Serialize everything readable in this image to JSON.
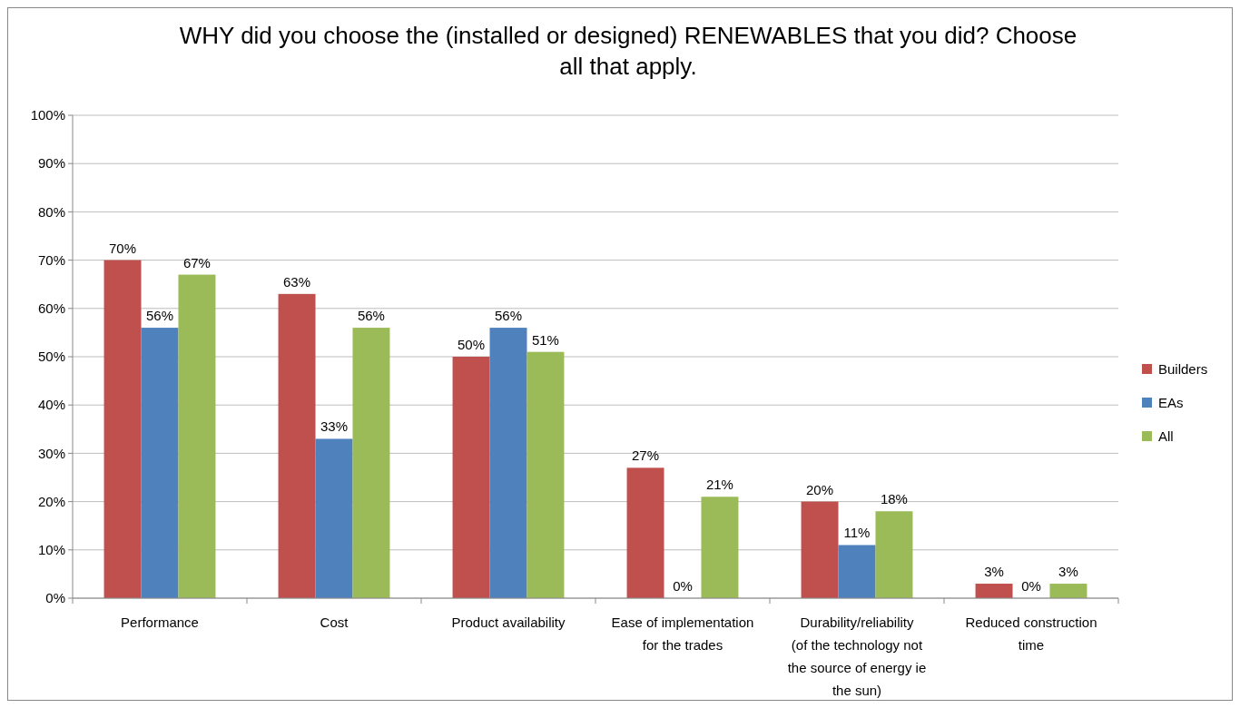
{
  "chart_data": {
    "type": "bar",
    "title": "WHY did you choose the (installed or designed) RENEWABLES that you did? Choose all that apply.",
    "categories": [
      "Performance",
      "Cost",
      "Product availability",
      "Ease of implementation for the trades",
      "Durability/reliability (of the technology not the source of energy ie the sun)",
      "Reduced construction time"
    ],
    "series": [
      {
        "name": "Builders",
        "color": "#c0504d",
        "values": [
          70,
          63,
          50,
          27,
          20,
          3
        ],
        "value_labels": [
          "70%",
          "63%",
          "50%",
          "27%",
          "20%",
          "3%"
        ]
      },
      {
        "name": "EAs",
        "color": "#4f81bd",
        "values": [
          56,
          33,
          56,
          0,
          11,
          0
        ],
        "value_labels": [
          "56%",
          "33%",
          "56%",
          "0%",
          "11%",
          "0%"
        ]
      },
      {
        "name": "All",
        "color": "#9bbb59",
        "values": [
          67,
          56,
          51,
          21,
          18,
          3
        ],
        "value_labels": [
          "67%",
          "56%",
          "51%",
          "21%",
          "18%",
          "3%"
        ]
      }
    ],
    "ylim": [
      0,
      100
    ],
    "yticks": [
      {
        "value": 0,
        "label": "0%"
      },
      {
        "value": 10,
        "label": "10%"
      },
      {
        "value": 20,
        "label": "20%"
      },
      {
        "value": 30,
        "label": "30%"
      },
      {
        "value": 40,
        "label": "40%"
      },
      {
        "value": 50,
        "label": "50%"
      },
      {
        "value": 60,
        "label": "60%"
      },
      {
        "value": 70,
        "label": "70%"
      },
      {
        "value": 80,
        "label": "80%"
      },
      {
        "value": 90,
        "label": "90%"
      },
      {
        "value": 100,
        "label": "100%"
      }
    ],
    "grid": "y",
    "legend": "right"
  }
}
